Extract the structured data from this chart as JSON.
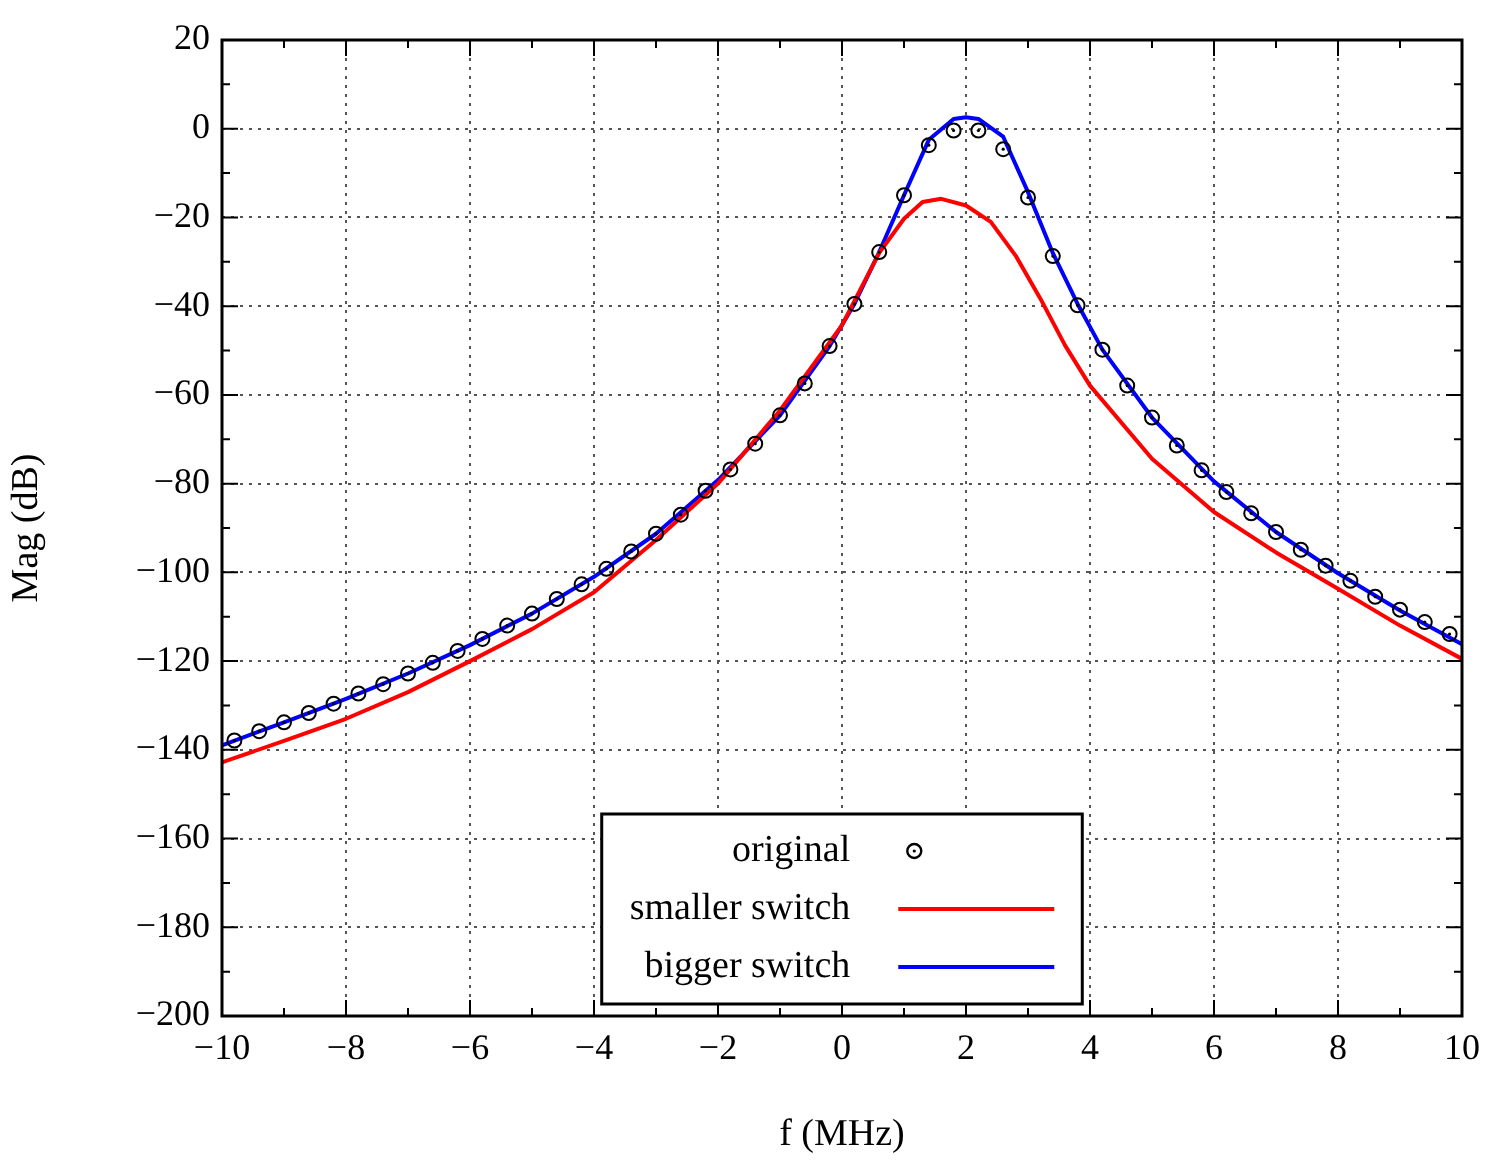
{
  "chart_data": {
    "type": "line",
    "xlabel": "f (MHz)",
    "ylabel": "Mag (dB)",
    "xlim": [
      -10,
      10
    ],
    "ylim": [
      -200,
      20
    ],
    "xticks": [
      -10,
      -8,
      -6,
      -4,
      -2,
      0,
      2,
      4,
      6,
      8,
      10
    ],
    "yticks": [
      -200,
      -180,
      -160,
      -140,
      -120,
      -100,
      -80,
      -60,
      -40,
      -20,
      0,
      20
    ],
    "grid": true,
    "legend": "bottom",
    "series": [
      {
        "name": "original",
        "type": "scatter",
        "color": "#000000",
        "marker": "circle",
        "x": [
          -9.8,
          -9.4,
          -9.0,
          -8.6,
          -8.2,
          -7.8,
          -7.4,
          -7.0,
          -6.6,
          -6.2,
          -5.8,
          -5.4,
          -5.0,
          -4.6,
          -4.2,
          -3.8,
          -3.4,
          -3.0,
          -2.6,
          -2.2,
          -1.8,
          -1.4,
          -1.0,
          -0.6,
          -0.2,
          0.2,
          0.6,
          1.0,
          1.4,
          1.8,
          2.2,
          2.6,
          3.0,
          3.4,
          3.8,
          4.2,
          4.6,
          5.0,
          5.4,
          5.8,
          6.2,
          6.6,
          7.0,
          7.4,
          7.8,
          8.2,
          8.6,
          9.0,
          9.4,
          9.8
        ],
        "values": [
          -137.9,
          -135.8,
          -133.8,
          -131.7,
          -129.6,
          -127.3,
          -125.2,
          -122.8,
          -120.4,
          -117.7,
          -115.0,
          -112.0,
          -109.3,
          -106.0,
          -102.7,
          -99.2,
          -95.3,
          -91.3,
          -87.0,
          -81.6,
          -76.8,
          -71.0,
          -64.6,
          -57.4,
          -49.0,
          -39.5,
          -27.8,
          -15.0,
          -3.7,
          -0.4,
          -0.4,
          -4.6,
          -15.5,
          -28.7,
          -39.8,
          -49.8,
          -57.9,
          -65.1,
          -71.4,
          -77.0,
          -81.9,
          -86.7,
          -90.9,
          -94.9,
          -98.5,
          -101.9,
          -105.5,
          -108.4,
          -111.2,
          -113.9
        ]
      },
      {
        "name": "smaller switch",
        "color": "#ff0000",
        "marker": "none",
        "x": [
          -10,
          -9,
          -8,
          -7,
          -6,
          -5,
          -4,
          -3,
          -2,
          -1,
          0,
          0.6,
          1.0,
          1.3,
          1.6,
          2.0,
          2.4,
          2.8,
          3.2,
          3.6,
          4,
          5,
          6,
          7,
          8,
          9,
          10
        ],
        "values": [
          -142.8,
          -138,
          -133,
          -127,
          -120,
          -112.8,
          -104.5,
          -92.7,
          -80,
          -63.5,
          -44.3,
          -28,
          -20.3,
          -16.5,
          -15.8,
          -17.3,
          -21,
          -28.6,
          -38.3,
          -48.9,
          -57.9,
          -74.4,
          -86.4,
          -95.5,
          -103.7,
          -112,
          -119.5
        ]
      },
      {
        "name": "bigger switch",
        "color": "#0000ff",
        "marker": "none",
        "x": [
          -10,
          -9,
          -8,
          -7,
          -6,
          -5,
          -4,
          -3,
          -2,
          -1,
          -0.2,
          0.2,
          0.6,
          1.0,
          1.4,
          1.8,
          2.0,
          2.2,
          2.6,
          3.0,
          3.4,
          3.8,
          4.2,
          5,
          6,
          7,
          8,
          9,
          10
        ],
        "values": [
          -139,
          -133.8,
          -128.5,
          -122.8,
          -116.4,
          -109.3,
          -101.0,
          -91.3,
          -79.2,
          -64.6,
          -49,
          -39.5,
          -27.8,
          -15,
          -2.5,
          2.2,
          2.6,
          2.2,
          -1.8,
          -14.3,
          -28,
          -39.5,
          -49.8,
          -65.1,
          -79.5,
          -90.9,
          -100.2,
          -108.6,
          -116.2
        ]
      }
    ]
  }
}
